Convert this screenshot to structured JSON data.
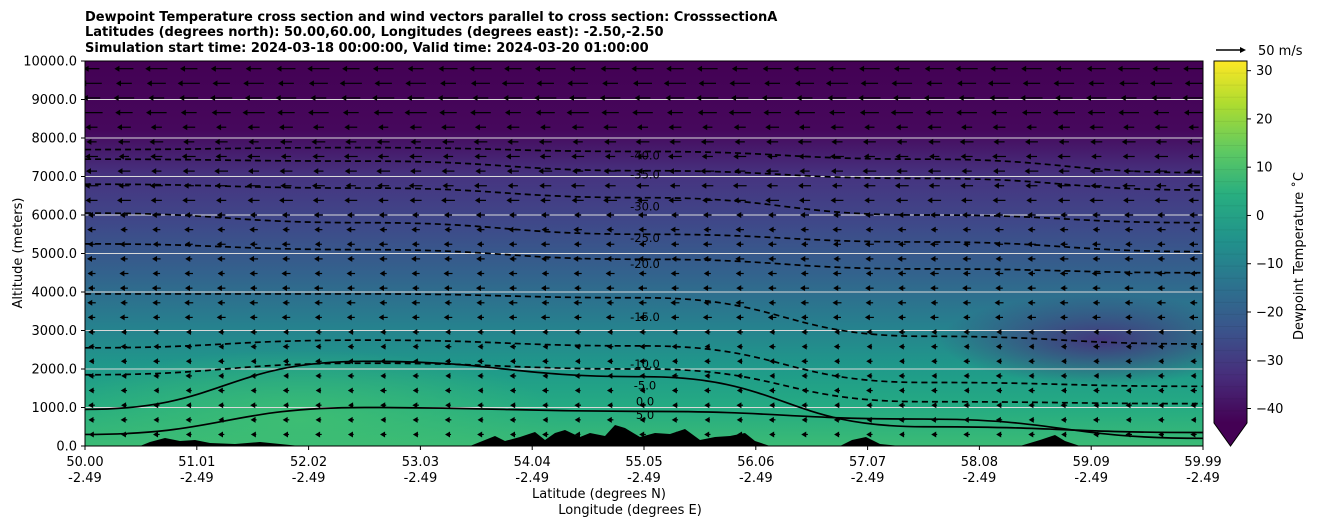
{
  "chart_data": {
    "type": "contour",
    "title_lines": [
      "Dewpoint Temperature cross section and wind vectors parallel to cross section: CrosssectionA",
      "Latitudes (degrees north): 50.00,60.00, Longitudes (degrees east): -2.50,-2.50",
      "Simulation start time: 2024-03-18 00:00:00, Valid time: 2024-03-20 01:00:00"
    ],
    "xlabel": "Latitude (degrees N)",
    "xlabel2": "Longitude (degrees E)",
    "ylabel": "Altitude (meters)",
    "x_ticks_lat": [
      "50.00",
      "51.01",
      "52.02",
      "53.03",
      "54.04",
      "55.05",
      "56.06",
      "57.07",
      "58.08",
      "59.09",
      "59.99"
    ],
    "x_ticks_lon": [
      "-2.49",
      "-2.49",
      "-2.49",
      "-2.49",
      "-2.49",
      "-2.49",
      "-2.49",
      "-2.49",
      "-2.49",
      "-2.49",
      "-2.49"
    ],
    "xlim": [
      50.0,
      59.99
    ],
    "y_ticks": [
      "0.0",
      "1000.0",
      "2000.0",
      "3000.0",
      "4000.0",
      "5000.0",
      "6000.0",
      "7000.0",
      "8000.0",
      "9000.0",
      "10000.0"
    ],
    "ylim": [
      0,
      10000
    ],
    "colorbar": {
      "label": "Dewpoint Temperature ˚C",
      "ticks": [
        "−40",
        "−30",
        "−20",
        "−10",
        "0",
        "10",
        "20",
        "30"
      ],
      "range": [
        -43,
        32
      ],
      "extend": "min",
      "colormap": "viridis"
    },
    "quiver_key": {
      "label": "50 m/s"
    },
    "contours": [
      {
        "level": -40,
        "label": "-40.0",
        "y": [
          7700,
          7750,
          7650,
          7450,
          7100
        ]
      },
      {
        "level": -35,
        "label": "-35.0",
        "y": [
          7450,
          7400,
          7150,
          6950,
          6650
        ]
      },
      {
        "level": -30,
        "label": "-30.0",
        "y": [
          6800,
          6700,
          6450,
          6000,
          5800
        ]
      },
      {
        "level": -25,
        "label": "-25.0",
        "y": [
          6050,
          5800,
          5500,
          5300,
          5050
        ]
      },
      {
        "level": -20,
        "label": "-20.0",
        "y": [
          5250,
          5100,
          4850,
          4600,
          4500
        ]
      },
      {
        "level": -15,
        "label": "-15.0",
        "y": [
          3950,
          3950,
          3850,
          2850,
          2650
        ]
      },
      {
        "level": -10,
        "label": "-10.0",
        "y": [
          2550,
          2750,
          2600,
          1650,
          1550
        ]
      },
      {
        "level": -5,
        "label": "-5.0",
        "y": [
          1850,
          2150,
          2000,
          1150,
          1100
        ]
      },
      {
        "level": 0,
        "label": "0.0",
        "y": [
          950,
          2200,
          1800,
          500,
          350
        ]
      },
      {
        "level": 5,
        "label": "5.0",
        "y": [
          300,
          1000,
          900,
          700,
          200
        ]
      }
    ],
    "wind_vectors": {
      "direction": "westward (toward lower latitude)",
      "strongest_above_m": 8500
    },
    "grid": "horizontal",
    "legend": "none"
  }
}
